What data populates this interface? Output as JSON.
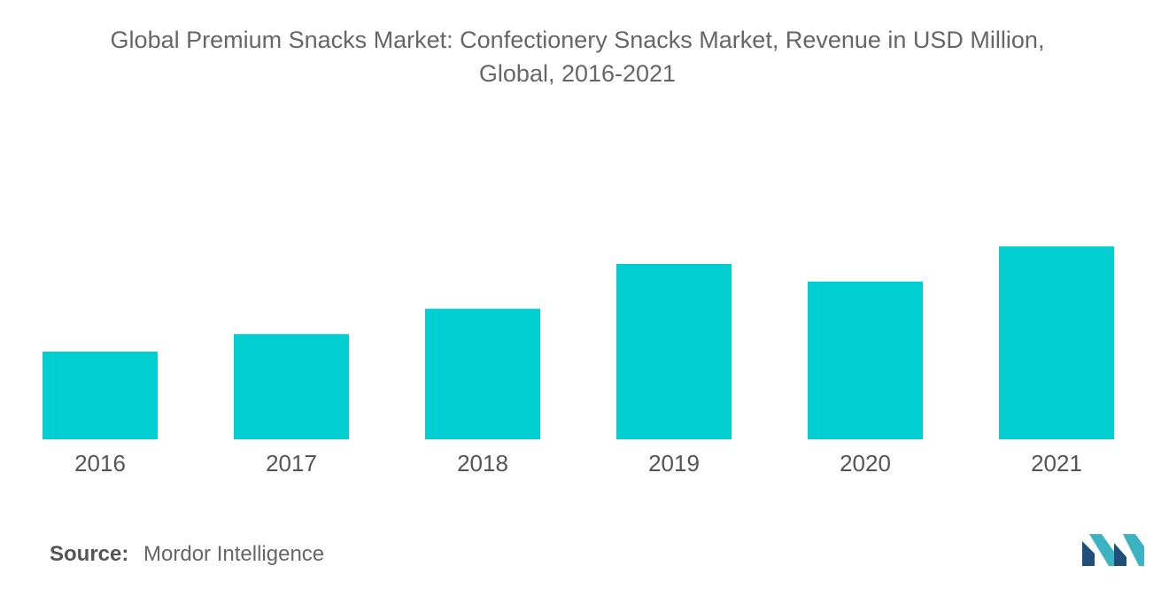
{
  "chart_data": {
    "type": "bar",
    "title_line1": "Global Premium Snacks Market: Confectionery Snacks Market, Revenue in USD Million,",
    "title_line2": "Global, 2016-2021",
    "categories": [
      "2016",
      "2017",
      "2018",
      "2019",
      "2020",
      "2021"
    ],
    "values": [
      45,
      54,
      67,
      90,
      81,
      99
    ],
    "ylim": [
      0,
      100
    ],
    "xlabel": "",
    "ylabel": "",
    "grid": false,
    "bar_color": "#00CED1"
  },
  "source": {
    "label": "Source:",
    "text": "Mordor Intelligence"
  },
  "logo": {
    "icon": "mordor-intelligence-logo",
    "colors": [
      "#1f4e79",
      "#3bb3c3"
    ]
  }
}
